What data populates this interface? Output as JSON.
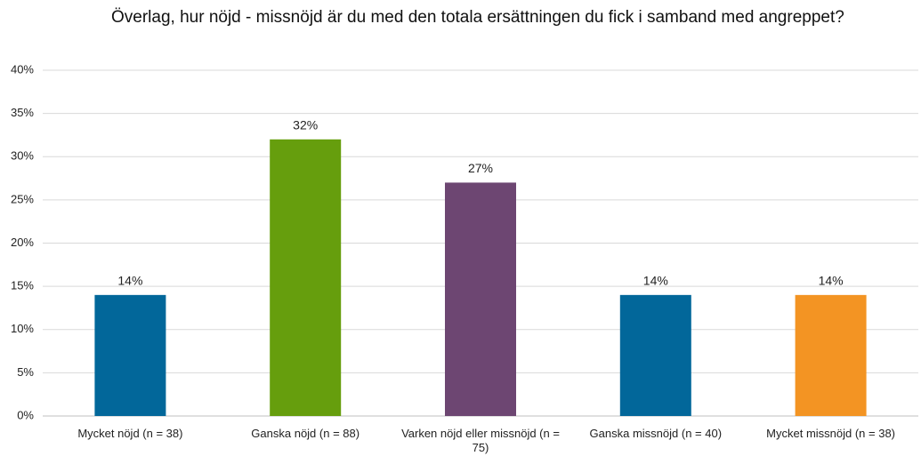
{
  "chart_data": {
    "type": "bar",
    "title": "Överlag, hur nöjd - missnöjd är du med den totala ersättningen du fick i samband med angreppet?",
    "categories": [
      "Mycket nöjd (n = 38)",
      "Ganska nöjd (n = 88)",
      "Varken nöjd eller missnöjd (n = 75)",
      "Ganska missnöjd (n = 40)",
      "Mycket missnöjd (n = 38)"
    ],
    "values": [
      14,
      32,
      27,
      14,
      14
    ],
    "value_labels": [
      "14%",
      "32%",
      "27%",
      "14%",
      "14%"
    ],
    "colors": [
      "#02679a",
      "#669e0d",
      "#6d4672",
      "#02679a",
      "#f39423"
    ],
    "ylim": [
      0,
      40
    ],
    "yticks": [
      {
        "value": 0,
        "label": "0%"
      },
      {
        "value": 5,
        "label": "5%"
      },
      {
        "value": 10,
        "label": "10%"
      },
      {
        "value": 15,
        "label": "15%"
      },
      {
        "value": 20,
        "label": "20%"
      },
      {
        "value": 25,
        "label": "25%"
      },
      {
        "value": 30,
        "label": "30%"
      },
      {
        "value": 35,
        "label": "35%"
      },
      {
        "value": 40,
        "label": "40%"
      }
    ],
    "grid": true
  }
}
